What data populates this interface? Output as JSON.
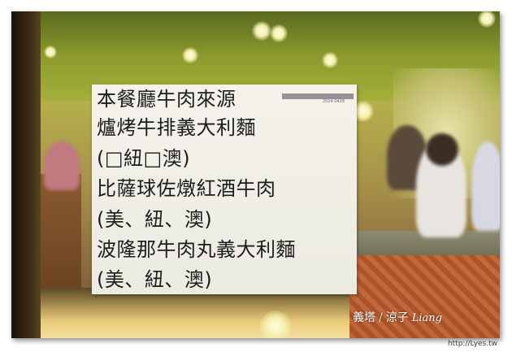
{
  "sign": {
    "lines": [
      "本餐廳牛肉來源",
      "爐烤牛排義大利麵",
      "(□紐□澳)",
      "比薩球佐燉紅酒牛肉",
      "(美、紐、澳)",
      "波隆那牛肉丸義大利麵",
      "(美、紐、澳)"
    ],
    "date": "2014.0428"
  },
  "watermark": {
    "brand": "義塔",
    "slash": "/",
    "author": "涼子",
    "signature": "Liang"
  },
  "credit": "http://Lyes.tw",
  "colors": {
    "sign_paper": "#f4f2ea",
    "sign_text": "#1c1c1c",
    "date_bar": "#9a8f96",
    "background_green": "#8a9a2c"
  }
}
